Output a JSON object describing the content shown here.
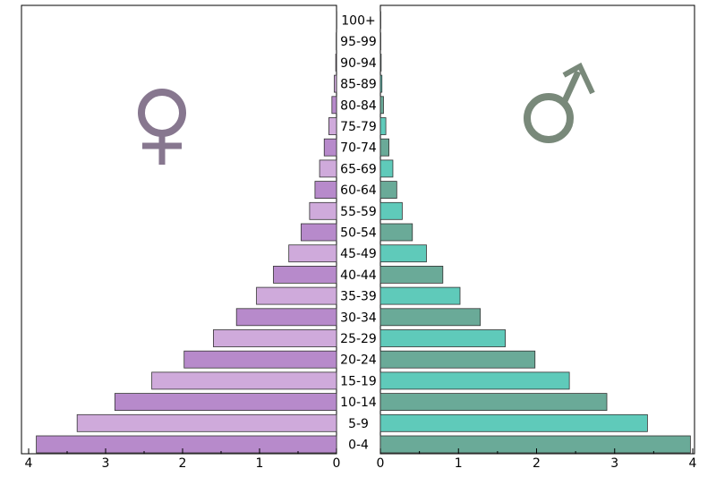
{
  "chart_data": {
    "type": "bar",
    "orientation": "horizontal",
    "subtype": "population-pyramid",
    "title": "",
    "xlabel": "",
    "ylabel": "",
    "categories": [
      "0-4",
      "5-9",
      "10-14",
      "15-19",
      "20-24",
      "25-29",
      "30-34",
      "35-39",
      "40-44",
      "45-49",
      "50-54",
      "55-59",
      "60-64",
      "65-69",
      "70-74",
      "75-79",
      "80-84",
      "85-89",
      "90-94",
      "95-99",
      "100+"
    ],
    "series": [
      {
        "side": "left",
        "icon": "female-symbol-icon",
        "colors": [
          "#b78acb",
          "#cfaadb"
        ],
        "values": [
          3.9,
          3.37,
          2.88,
          2.4,
          1.98,
          1.6,
          1.3,
          1.04,
          0.82,
          0.62,
          0.46,
          0.35,
          0.28,
          0.22,
          0.16,
          0.1,
          0.06,
          0.03,
          0.01,
          0.005,
          0.002
        ]
      },
      {
        "side": "right",
        "icon": "male-symbol-icon",
        "colors": [
          "#6aaa98",
          "#5fcaba"
        ],
        "values": [
          3.97,
          3.42,
          2.9,
          2.42,
          1.98,
          1.6,
          1.28,
          1.02,
          0.8,
          0.59,
          0.41,
          0.28,
          0.21,
          0.16,
          0.11,
          0.07,
          0.04,
          0.02,
          0.01,
          0.005,
          0.002
        ]
      }
    ],
    "xlim": [
      0,
      4
    ],
    "xticks": [
      "0",
      "1",
      "2",
      "3",
      "4"
    ],
    "symbol_colors": {
      "female": "#87778f",
      "male": "#79897a"
    },
    "grid": false,
    "legend": "none"
  }
}
